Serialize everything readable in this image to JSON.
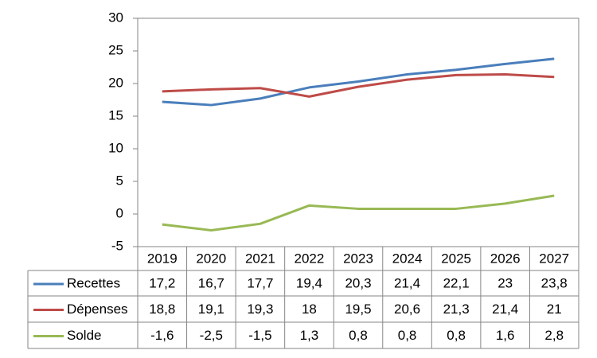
{
  "chart_data": {
    "type": "line",
    "categories": [
      "2019",
      "2020",
      "2021",
      "2022",
      "2023",
      "2024",
      "2025",
      "2026",
      "2027"
    ],
    "series": [
      {
        "name": "Recettes",
        "color": "#4a7ebb",
        "values": [
          17.2,
          16.7,
          17.7,
          19.4,
          20.3,
          21.4,
          22.1,
          23,
          23.8
        ],
        "value_labels": [
          "17,2",
          "16,7",
          "17,7",
          "19,4",
          "20,3",
          "21,4",
          "22,1",
          "23",
          "23,8"
        ]
      },
      {
        "name": "Dépenses",
        "color": "#be4b48",
        "values": [
          18.8,
          19.1,
          19.3,
          18,
          19.5,
          20.6,
          21.3,
          21.4,
          21
        ],
        "value_labels": [
          "18,8",
          "19,1",
          "19,3",
          "18",
          "19,5",
          "20,6",
          "21,3",
          "21,4",
          "21"
        ]
      },
      {
        "name": "Solde",
        "color": "#98b954",
        "values": [
          -1.6,
          -2.5,
          -1.5,
          1.3,
          0.8,
          0.8,
          0.8,
          1.6,
          2.8
        ],
        "value_labels": [
          "-1,6",
          "-2,5",
          "-1,5",
          "1,3",
          "0,8",
          "0,8",
          "0,8",
          "1,6",
          "2,8"
        ]
      }
    ],
    "ylim": [
      -5,
      30
    ],
    "yticks": [
      -5,
      0,
      5,
      10,
      15,
      20,
      25,
      30
    ],
    "grid": false
  }
}
